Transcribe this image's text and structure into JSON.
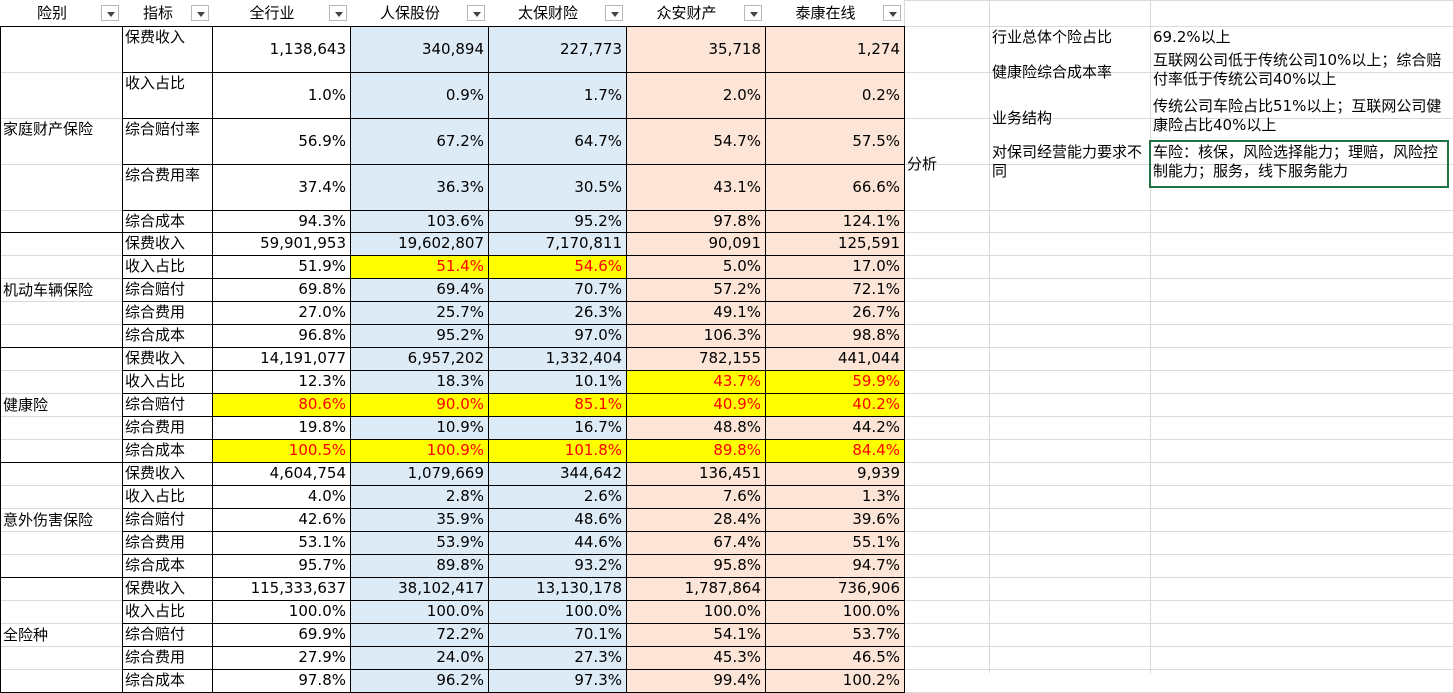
{
  "headers": [
    "险别",
    "指标",
    "全行业",
    "人保股份",
    "太保财险",
    "众安财产",
    "泰康在线"
  ],
  "groups": [
    {
      "name": "家庭财产保险",
      "rows": [
        {
          "label": "保费收入",
          "values": [
            "1,138,643",
            "340,894",
            "227,773",
            "35,718",
            "1,274"
          ]
        },
        {
          "label": "收入占比",
          "values": [
            "1.0%",
            "0.9%",
            "1.7%",
            "2.0%",
            "0.2%"
          ]
        },
        {
          "label": "综合赔付率",
          "values": [
            "56.9%",
            "67.2%",
            "64.7%",
            "54.7%",
            "57.5%"
          ]
        },
        {
          "label": "综合费用率",
          "values": [
            "37.4%",
            "36.3%",
            "30.5%",
            "43.1%",
            "66.6%"
          ]
        },
        {
          "label": "综合成本",
          "values": [
            "94.3%",
            "103.6%",
            "95.2%",
            "97.8%",
            "124.1%"
          ]
        }
      ]
    },
    {
      "name": "机动车辆保险",
      "rows": [
        {
          "label": "保费收入",
          "values": [
            "59,901,953",
            "19,602,807",
            "7,170,811",
            "90,091",
            "125,591"
          ]
        },
        {
          "label": "收入占比",
          "values": [
            "51.9%",
            "51.4%",
            "54.6%",
            "5.0%",
            "17.0%"
          ]
        },
        {
          "label": "综合赔付",
          "values": [
            "69.8%",
            "69.4%",
            "70.7%",
            "57.2%",
            "72.1%"
          ]
        },
        {
          "label": "综合费用",
          "values": [
            "27.0%",
            "25.7%",
            "26.3%",
            "49.1%",
            "26.7%"
          ]
        },
        {
          "label": "综合成本",
          "values": [
            "96.8%",
            "95.2%",
            "97.0%",
            "106.3%",
            "98.8%"
          ]
        }
      ]
    },
    {
      "name": "健康险",
      "rows": [
        {
          "label": "保费收入",
          "values": [
            "14,191,077",
            "6,957,202",
            "1,332,404",
            "782,155",
            "441,044"
          ]
        },
        {
          "label": "收入占比",
          "values": [
            "12.3%",
            "18.3%",
            "10.1%",
            "43.7%",
            "59.9%"
          ]
        },
        {
          "label": "综合赔付",
          "values": [
            "80.6%",
            "90.0%",
            "85.1%",
            "40.9%",
            "40.2%"
          ]
        },
        {
          "label": "综合费用",
          "values": [
            "19.8%",
            "10.9%",
            "16.7%",
            "48.8%",
            "44.2%"
          ]
        },
        {
          "label": "综合成本",
          "values": [
            "100.5%",
            "100.9%",
            "101.8%",
            "89.8%",
            "84.4%"
          ]
        }
      ]
    },
    {
      "name": "意外伤害保险",
      "rows": [
        {
          "label": "保费收入",
          "values": [
            "4,604,754",
            "1,079,669",
            "344,642",
            "136,451",
            "9,939"
          ]
        },
        {
          "label": "收入占比",
          "values": [
            "4.0%",
            "2.8%",
            "2.6%",
            "7.6%",
            "1.3%"
          ]
        },
        {
          "label": "综合赔付",
          "values": [
            "42.6%",
            "35.9%",
            "48.6%",
            "28.4%",
            "39.6%"
          ]
        },
        {
          "label": "综合费用",
          "values": [
            "53.1%",
            "53.9%",
            "44.6%",
            "67.4%",
            "55.1%"
          ]
        },
        {
          "label": "综合成本",
          "values": [
            "95.7%",
            "89.8%",
            "93.2%",
            "95.8%",
            "94.7%"
          ]
        }
      ]
    },
    {
      "name": "全险种",
      "rows": [
        {
          "label": "保费收入",
          "values": [
            "115,333,637",
            "38,102,417",
            "13,130,178",
            "1,787,864",
            "736,906"
          ]
        },
        {
          "label": "收入占比",
          "values": [
            "100.0%",
            "100.0%",
            "100.0%",
            "100.0%",
            "100.0%"
          ]
        },
        {
          "label": "综合赔付",
          "values": [
            "69.9%",
            "72.2%",
            "70.1%",
            "54.1%",
            "53.7%"
          ]
        },
        {
          "label": "综合费用",
          "values": [
            "27.9%",
            "24.0%",
            "27.3%",
            "45.3%",
            "46.5%"
          ]
        },
        {
          "label": "综合成本",
          "values": [
            "97.8%",
            "96.2%",
            "97.3%",
            "99.4%",
            "100.2%"
          ]
        }
      ]
    }
  ],
  "highlights": [
    {
      "group": 1,
      "row": 1,
      "cols": [
        1,
        2
      ]
    },
    {
      "group": 2,
      "row": 1,
      "cols": [
        3,
        4
      ]
    },
    {
      "group": 2,
      "row": 2,
      "cols": [
        0,
        1,
        2,
        3,
        4
      ]
    },
    {
      "group": 2,
      "row": 4,
      "cols": [
        0,
        1,
        2,
        3,
        4
      ]
    }
  ],
  "colors": {
    "highlight_fill": "#ffff00",
    "highlight_text": "#ff0000",
    "blue_fill": "#ddebf7",
    "peach_fill": "#fce4d6",
    "selection_border": "#217346"
  },
  "analysis": {
    "label": "分析",
    "items": [
      {
        "key": "行业总体个险占比",
        "value": "69.2%以上"
      },
      {
        "key": "健康险综合成本率",
        "value": "互联网公司低于传统公司10%以上；综合赔付率低于传统公司40%以上"
      },
      {
        "key": "业务结构",
        "value": "传统公司车险占比51%以上；互联网公司健康险占比40%以上"
      },
      {
        "key": "对保司经营能力要求不同",
        "value": "车险：核保，风险选择能力；理赔，风险控制能力；服务，线下服务能力"
      }
    ]
  }
}
